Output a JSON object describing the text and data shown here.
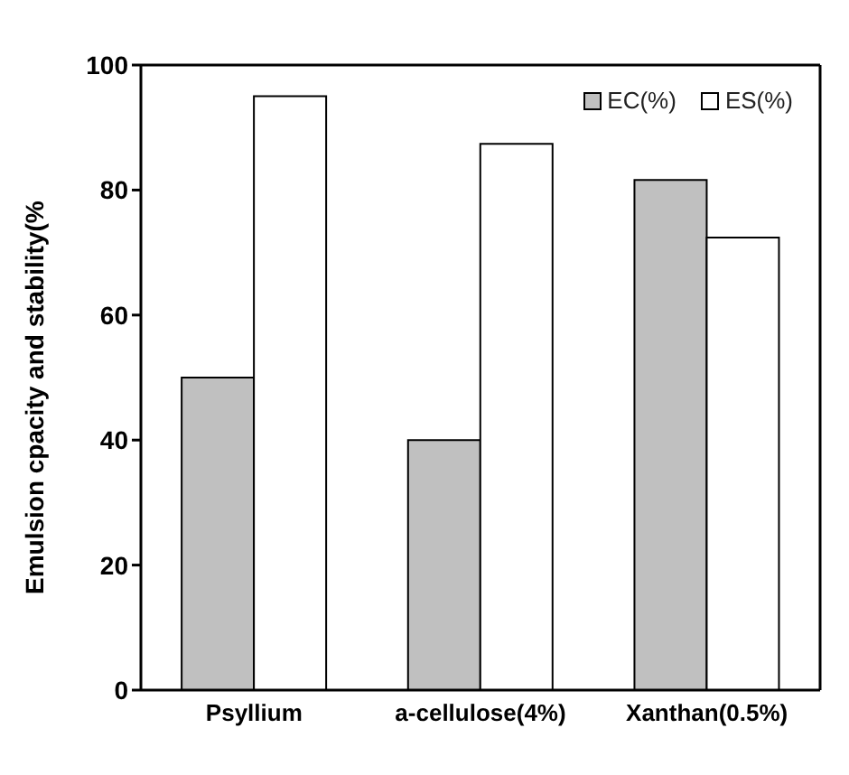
{
  "chart_data": {
    "type": "bar",
    "ylabel": "Emulsion cpacity and stability(%",
    "categories": [
      "Psyllium",
      "a-cellulose(4%)",
      "Xanthan(0.5%)"
    ],
    "series": [
      {
        "name": "EC(%)",
        "color": "#c0c0c0",
        "values": [
          50,
          40,
          81.6
        ]
      },
      {
        "name": "ES(%)",
        "color": "#ffffff",
        "values": [
          95,
          87.4,
          72.4
        ]
      }
    ],
    "ylim": [
      0,
      100
    ],
    "yticks": [
      0,
      20,
      40,
      60,
      80,
      100
    ],
    "grid": false,
    "legend": "top right"
  }
}
